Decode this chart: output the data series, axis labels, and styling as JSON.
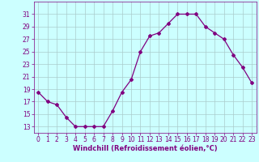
{
  "x": [
    0,
    1,
    2,
    3,
    4,
    5,
    6,
    7,
    8,
    9,
    10,
    11,
    12,
    13,
    14,
    15,
    16,
    17,
    18,
    19,
    20,
    21,
    22,
    23
  ],
  "y": [
    18.5,
    17.0,
    16.5,
    14.5,
    13.0,
    13.0,
    13.0,
    13.0,
    15.5,
    18.5,
    20.5,
    25.0,
    27.5,
    28.0,
    29.5,
    31.0,
    31.0,
    31.0,
    29.0,
    28.0,
    27.0,
    24.5,
    22.5,
    20.0
  ],
  "line_color": "#800080",
  "marker": "D",
  "marker_size": 2.0,
  "linewidth": 0.9,
  "bg_color": "#ccffff",
  "grid_color": "#aacccc",
  "xlabel": "Windchill (Refroidissement éolien,°C)",
  "xlabel_fontsize": 6.0,
  "xlabel_color": "#800080",
  "tick_color": "#800080",
  "tick_labelsize": 5.5,
  "ylim": [
    12,
    33
  ],
  "yticks": [
    13,
    15,
    17,
    19,
    21,
    23,
    25,
    27,
    29,
    31
  ],
  "xlim": [
    -0.5,
    23.5
  ],
  "xticks": [
    0,
    1,
    2,
    3,
    4,
    5,
    6,
    7,
    8,
    9,
    10,
    11,
    12,
    13,
    14,
    15,
    16,
    17,
    18,
    19,
    20,
    21,
    22,
    23
  ]
}
